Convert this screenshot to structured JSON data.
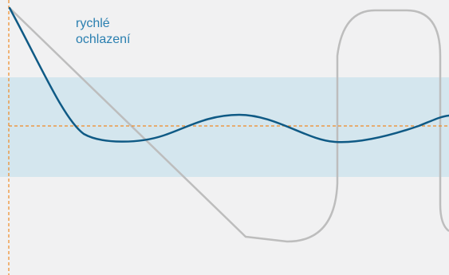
{
  "annotation": {
    "line1": "rychlé",
    "line2": "ochlazení"
  },
  "colors": {
    "background": "#f1f1f2",
    "band": "#d4e6ee",
    "curve": "#0f5a85",
    "gray_path": "#bdbdbd",
    "guide_lines": "#f08a24",
    "label": "#2a7fb0"
  }
}
